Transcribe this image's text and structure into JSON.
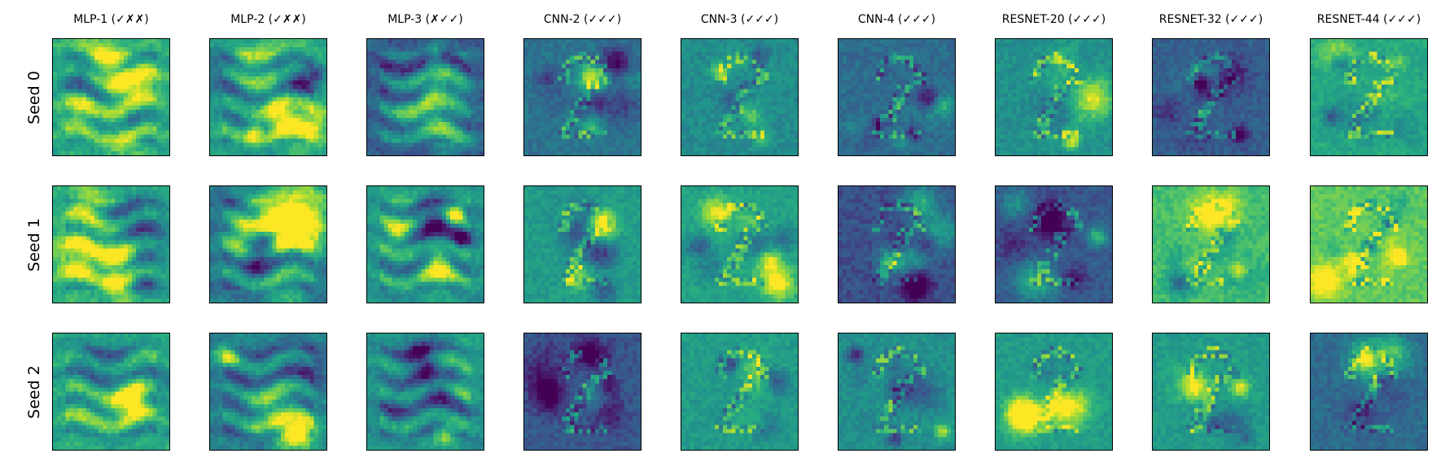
{
  "figure": {
    "columns": [
      {
        "title": "MLP-1 (✓✗✗)",
        "family": "mlp"
      },
      {
        "title": "MLP-2 (✓✗✗)",
        "family": "mlp"
      },
      {
        "title": "MLP-3 (✗✓✓)",
        "family": "mlp"
      },
      {
        "title": "CNN-2 (✓✓✓)",
        "family": "cnn"
      },
      {
        "title": "CNN-3 (✓✓✓)",
        "family": "cnn"
      },
      {
        "title": "CNN-4 (✓✓✓)",
        "family": "cnn"
      },
      {
        "title": "RESNET-20 (✓✓✓)",
        "family": "resnet"
      },
      {
        "title": "RESNET-32 (✓✓✓)",
        "family": "resnet"
      },
      {
        "title": "RESNET-44 (✓✓✓)",
        "family": "resnet"
      }
    ],
    "rows": [
      {
        "label": "Seed 0"
      },
      {
        "label": "Seed 1"
      },
      {
        "label": "Seed 2"
      }
    ],
    "colormap": "viridis",
    "background_levels": [
      [
        0.62,
        0.58,
        0.3,
        0.38,
        0.48,
        0.36,
        0.5,
        0.3,
        0.6
      ],
      [
        0.6,
        0.38,
        0.52,
        0.55,
        0.58,
        0.25,
        0.28,
        0.7,
        0.75
      ],
      [
        0.58,
        0.42,
        0.5,
        0.28,
        0.55,
        0.5,
        0.55,
        0.55,
        0.35
      ]
    ]
  }
}
